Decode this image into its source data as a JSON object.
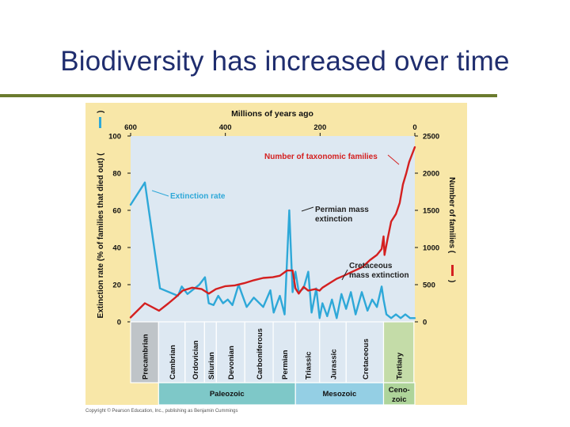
{
  "slide": {
    "title": "Biodiversity has increased over time",
    "copyright": "Copyright © Pearson Education, Inc., publishing as Benjamin Cummings"
  },
  "chart_data": {
    "type": "line",
    "top_axis": {
      "label": "Millions of years ago",
      "ticks": [
        600,
        400,
        200,
        0
      ],
      "range": [
        600,
        0
      ]
    },
    "left_axis": {
      "label": "Extinction rate (% of families that died out) (",
      "ticks": [
        0,
        20,
        40,
        60,
        80,
        100
      ],
      "range": [
        0,
        100
      ]
    },
    "right_axis": {
      "label": "Number of families (",
      "ticks": [
        0,
        500,
        1000,
        1500,
        2000,
        2500
      ],
      "range": [
        0,
        2500
      ]
    },
    "series": [
      {
        "name": "Extinction rate",
        "color": "#2ea8d8",
        "axis": "left",
        "x": [
          600,
          570,
          538,
          500,
          492,
          480,
          465,
          455,
          443,
          435,
          425,
          415,
          405,
          395,
          385,
          372,
          365,
          355,
          340,
          320,
          305,
          298,
          285,
          275,
          265,
          258,
          252,
          245,
          235,
          225,
          218,
          208,
          201,
          195,
          185,
          175,
          165,
          155,
          145,
          135,
          125,
          112,
          100,
          90,
          80,
          70,
          66,
          60,
          50,
          40,
          30,
          20,
          10,
          0
        ],
        "y": [
          63,
          75,
          18,
          14,
          19,
          15,
          18,
          20,
          24,
          10,
          9,
          14,
          10,
          12,
          9,
          20,
          15,
          8,
          13,
          8,
          17,
          5,
          14,
          4,
          60,
          16,
          27,
          16,
          18,
          27,
          5,
          18,
          2,
          10,
          3,
          12,
          2,
          15,
          7,
          16,
          4,
          16,
          6,
          12,
          8,
          19,
          12,
          4,
          2,
          4,
          2,
          4,
          2,
          2
        ]
      },
      {
        "name": "Number of taxonomic families",
        "color": "#d42020",
        "axis": "right",
        "x": [
          600,
          570,
          540,
          520,
          505,
          490,
          470,
          450,
          435,
          420,
          400,
          380,
          360,
          340,
          320,
          300,
          285,
          270,
          258,
          252,
          245,
          235,
          225,
          210,
          201,
          195,
          180,
          165,
          150,
          130,
          110,
          95,
          80,
          70,
          66,
          64,
          58,
          50,
          40,
          32,
          25,
          18,
          12,
          6,
          0
        ],
        "y": [
          60,
          250,
          150,
          250,
          330,
          420,
          460,
          440,
          380,
          440,
          480,
          490,
          520,
          560,
          590,
          600,
          620,
          690,
          690,
          450,
          380,
          470,
          420,
          440,
          420,
          460,
          520,
          580,
          620,
          680,
          740,
          830,
          900,
          980,
          1150,
          900,
          1100,
          1350,
          1450,
          1600,
          1850,
          2000,
          2150,
          2250,
          2350
        ]
      }
    ],
    "annotations": [
      {
        "text": "Extinction rate",
        "color": "#2ea8d8"
      },
      {
        "text": "Number of taxonomic families",
        "color": "#d42020"
      },
      {
        "text": "Permian mass",
        "text2": "extinction",
        "color": "#222222"
      },
      {
        "text": "Cretaceous",
        "text2": "mass extinction",
        "color": "#222222"
      }
    ],
    "periods": [
      {
        "name": "Precambrian",
        "start": 600,
        "end": 541
      },
      {
        "name": "Cambrian",
        "start": 541,
        "end": 485
      },
      {
        "name": "Ordovician",
        "start": 485,
        "end": 444
      },
      {
        "name": "Silurian",
        "start": 444,
        "end": 419
      },
      {
        "name": "Devonian",
        "start": 419,
        "end": 359
      },
      {
        "name": "Carboniferous",
        "start": 359,
        "end": 299
      },
      {
        "name": "Permian",
        "start": 299,
        "end": 252
      },
      {
        "name": "Triassic",
        "start": 252,
        "end": 201
      },
      {
        "name": "Jurassic",
        "start": 201,
        "end": 145
      },
      {
        "name": "Cretaceous",
        "start": 145,
        "end": 66
      },
      {
        "name": "Tertiary",
        "start": 66,
        "end": 2
      }
    ],
    "eras": [
      {
        "name": "Paleozoic",
        "start": 541,
        "end": 252,
        "color": "#7ec8c8"
      },
      {
        "name": "Mesozoic",
        "start": 252,
        "end": 66,
        "color": "#94cfe4"
      },
      {
        "name": "Ceno-zoic",
        "start": 66,
        "end": 0,
        "color": "#aed49a"
      }
    ],
    "colors": {
      "panel": "#f8e7a8",
      "plot": "#dde8f2",
      "period_band": "#dde8f2",
      "tertiary_band": "#c4dca8",
      "precambrian_band": "#bfc4c8"
    },
    "grid": false
  }
}
